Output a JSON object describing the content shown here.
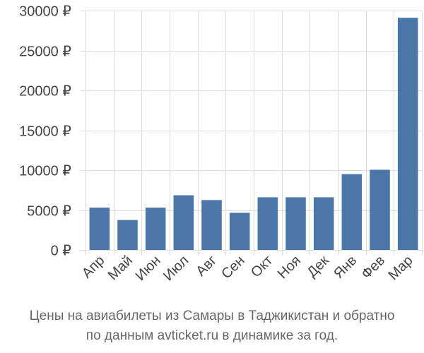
{
  "chart_data": {
    "type": "bar",
    "categories": [
      "Апр",
      "Май",
      "Июн",
      "Июл",
      "Авг",
      "Сен",
      "Окт",
      "Ноя",
      "Дек",
      "Янв",
      "Фев",
      "Мар"
    ],
    "values": [
      5300,
      3750,
      5300,
      6850,
      6250,
      4650,
      6600,
      6600,
      6600,
      9500,
      10050,
      29100
    ],
    "ylim": [
      0,
      30000
    ],
    "yticks": [
      0,
      5000,
      10000,
      15000,
      20000,
      25000,
      30000
    ],
    "ytick_labels": [
      "0 ₽",
      "5000 ₽",
      "10000 ₽",
      "15000 ₽",
      "20000 ₽",
      "25000 ₽",
      "30000 ₽"
    ],
    "grid": true,
    "bar_color": "#4a76a8"
  },
  "caption": {
    "line1": "Цены на авиабилеты из Самары в Таджикистан и обратно",
    "line2": "по данным avticket.ru в динамике за год."
  }
}
